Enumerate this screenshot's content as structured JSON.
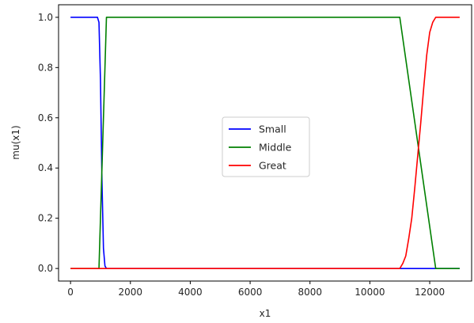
{
  "chart_data": {
    "type": "line",
    "title": "",
    "xlabel": "x1",
    "ylabel": "mu(x1)",
    "xlim": [
      -400,
      13400
    ],
    "ylim": [
      -0.05,
      1.05
    ],
    "xticks": [
      0,
      2000,
      4000,
      6000,
      8000,
      10000,
      12000
    ],
    "xtick_labels": [
      "0",
      "2000",
      "4000",
      "6000",
      "8000",
      "10000",
      "12000"
    ],
    "yticks": [
      0.0,
      0.2,
      0.4,
      0.6,
      0.8,
      1.0
    ],
    "ytick_labels": [
      "0.0",
      "0.2",
      "0.4",
      "0.6",
      "0.8",
      "1.0"
    ],
    "grid": false,
    "legend_position": "center",
    "series": [
      {
        "name": "Small",
        "color": "#0000ff",
        "x": [
          0,
          900,
          950,
          1000,
          1050,
          1100,
          1150,
          1200,
          13000
        ],
        "y": [
          1.0,
          1.0,
          0.98,
          0.75,
          0.35,
          0.08,
          0.01,
          0.0,
          0.0
        ]
      },
      {
        "name": "Middle",
        "color": "#008000",
        "x": [
          0,
          950,
          1200,
          11000,
          12200,
          13000
        ],
        "y": [
          0.0,
          0.0,
          1.0,
          1.0,
          0.0,
          0.0
        ]
      },
      {
        "name": "Great",
        "color": "#ff0000",
        "x": [
          0,
          11000,
          11100,
          11200,
          11300,
          11400,
          11500,
          11600,
          11700,
          11800,
          11900,
          12000,
          12100,
          12200,
          12300,
          13000
        ],
        "y": [
          0.0,
          0.0,
          0.02,
          0.05,
          0.12,
          0.2,
          0.32,
          0.45,
          0.58,
          0.72,
          0.85,
          0.94,
          0.98,
          1.0,
          1.0,
          1.0
        ]
      }
    ]
  }
}
